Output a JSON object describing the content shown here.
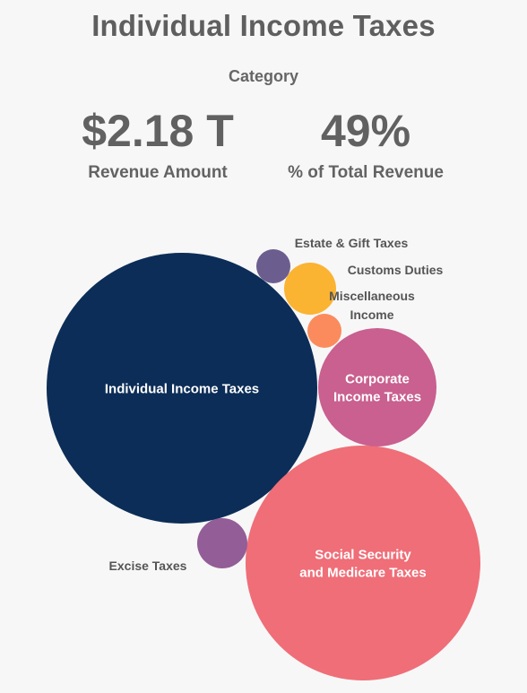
{
  "header": {
    "title": "Individual Income Taxes",
    "category_label": "Category",
    "revenue_value": "$2.18 T",
    "revenue_label": "Revenue Amount",
    "share_value": "49%",
    "share_label": "% of Total Revenue"
  },
  "chart_data": {
    "type": "bubble",
    "value_unit": "share of total revenue (%)",
    "bubbles": [
      {
        "key": "individual",
        "name": "Individual Income Taxes",
        "value": 49,
        "color": "#0c2d57",
        "label_inside": true
      },
      {
        "key": "social",
        "name": "Social Security and Medicare Taxes",
        "value": 36,
        "color": "#ef6e78",
        "label_inside": true
      },
      {
        "key": "corporate",
        "name": "Corporate Income Taxes",
        "value": 9,
        "color": "#c9608f",
        "label_inside": true
      },
      {
        "key": "excise",
        "name": "Excise Taxes",
        "value": 1.5,
        "color": "#935d97",
        "label_inside": false
      },
      {
        "key": "customs",
        "name": "Customs Duties",
        "value": 1.7,
        "color": "#fbb332",
        "label_inside": false
      },
      {
        "key": "misc",
        "name": "Miscellaneous Income",
        "value": 0.8,
        "color": "#fb8b5d",
        "label_inside": false
      },
      {
        "key": "estate",
        "name": "Estate & Gift Taxes",
        "value": 0.7,
        "color": "#6b5e8f",
        "label_inside": false
      }
    ]
  },
  "labels": {
    "individual": [
      "Individual Income Taxes"
    ],
    "social": [
      "Social Security",
      "and Medicare Taxes"
    ],
    "corporate": [
      "Corporate",
      "Income Taxes"
    ],
    "excise": [
      "Excise Taxes"
    ],
    "customs": [
      "Customs Duties"
    ],
    "misc": [
      "Miscellaneous",
      "Income"
    ],
    "estate": [
      "Estate & Gift Taxes"
    ]
  }
}
